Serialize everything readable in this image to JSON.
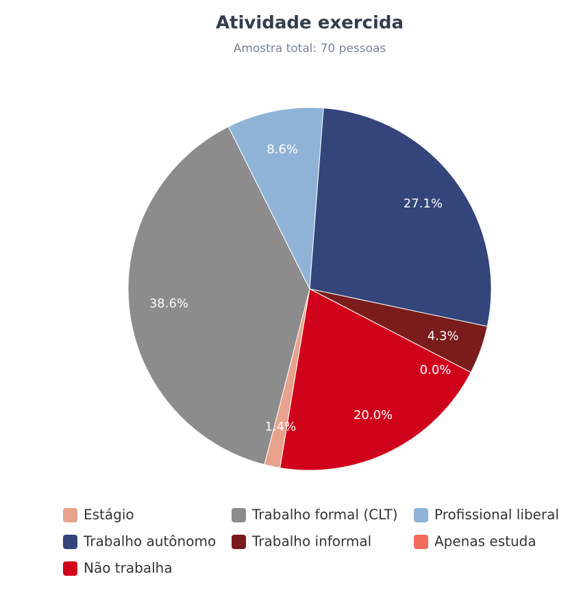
{
  "chart_data": {
    "type": "pie",
    "title": "Atividade exercida",
    "subtitle": "Amostra total: 70 pessoas",
    "categories": [
      "Estágio",
      "Trabalho formal (CLT)",
      "Profissional liberal",
      "Trabalho autônomo",
      "Trabalho informal",
      "Apenas estuda",
      "Não trabalha"
    ],
    "values": [
      1.4,
      38.6,
      8.6,
      27.1,
      4.3,
      0.0,
      20.0
    ],
    "value_labels": [
      "1.4%",
      "38.6%",
      "8.6%",
      "27.1%",
      "4.3%",
      "0.0%",
      "20.0%"
    ],
    "colors": [
      "#e8a28c",
      "#8c8c8c",
      "#8fb3d6",
      "#33457a",
      "#7a1c1c",
      "#f26b5b",
      "#d0021b"
    ],
    "legend": "bottom"
  }
}
